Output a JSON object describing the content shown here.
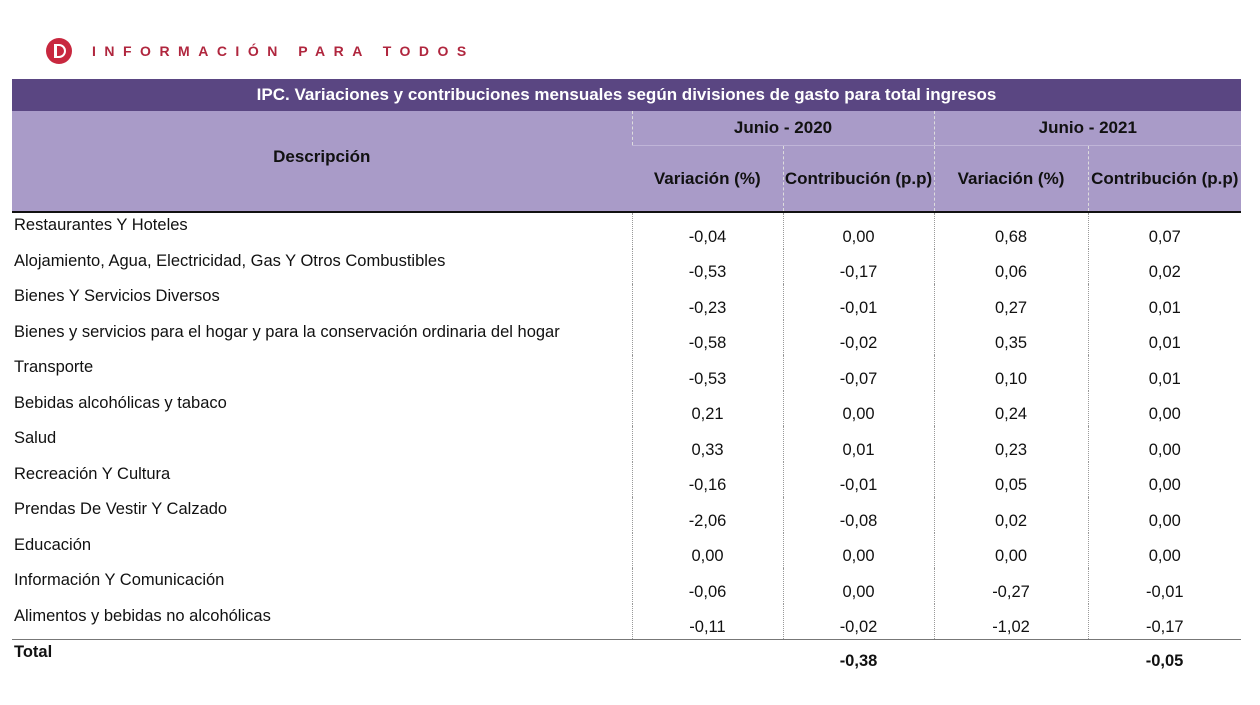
{
  "brand": {
    "text": "INFORMACIÓN PARA TODOS",
    "logo_color": "#c8283f"
  },
  "table": {
    "title": "IPC. Variaciones y contribuciones mensuales según divisiones de gasto para total ingresos",
    "description_header": "Descripción",
    "periods": [
      "Junio - 2020",
      "Junio - 2021"
    ],
    "subheaders": [
      "Variación (%)",
      "Contribución (p.p)",
      "Variación (%)",
      "Contribución (p.p)"
    ],
    "rows": [
      {
        "desc": "Restaurantes Y Hoteles",
        "v": [
          "-0,04",
          "0,00",
          "0,68",
          "0,07"
        ]
      },
      {
        "desc": "Alojamiento, Agua, Electricidad, Gas Y Otros Combustibles",
        "v": [
          "-0,53",
          "-0,17",
          "0,06",
          "0,02"
        ]
      },
      {
        "desc": "Bienes Y Servicios Diversos",
        "v": [
          "-0,23",
          "-0,01",
          "0,27",
          "0,01"
        ]
      },
      {
        "desc": "Bienes y servicios para el hogar y para la conservación ordinaria del hogar",
        "v": [
          "-0,58",
          "-0,02",
          "0,35",
          "0,01"
        ]
      },
      {
        "desc": "Transporte",
        "v": [
          "-0,53",
          "-0,07",
          "0,10",
          "0,01"
        ]
      },
      {
        "desc": "Bebidas alcohólicas y tabaco",
        "v": [
          "0,21",
          "0,00",
          "0,24",
          "0,00"
        ]
      },
      {
        "desc": "Salud",
        "v": [
          "0,33",
          "0,01",
          "0,23",
          "0,00"
        ]
      },
      {
        "desc": "Recreación Y Cultura",
        "v": [
          "-0,16",
          "-0,01",
          "0,05",
          "0,00"
        ]
      },
      {
        "desc": "Prendas De Vestir Y Calzado",
        "v": [
          "-2,06",
          "-0,08",
          "0,02",
          "0,00"
        ]
      },
      {
        "desc": "Educación",
        "v": [
          "0,00",
          "0,00",
          "0,00",
          "0,00"
        ]
      },
      {
        "desc": "Información Y Comunicación",
        "v": [
          "-0,06",
          "0,00",
          "-0,27",
          "-0,01"
        ]
      },
      {
        "desc": "Alimentos y bebidas no alcohólicas",
        "v": [
          "-0,11",
          "-0,02",
          "-1,02",
          "-0,17"
        ]
      }
    ],
    "total": {
      "label": "Total",
      "v": [
        "",
        "-0,38",
        "",
        "-0,05"
      ]
    }
  },
  "colors": {
    "title_bg": "#5a4682",
    "header_bg": "#a99bc8"
  }
}
